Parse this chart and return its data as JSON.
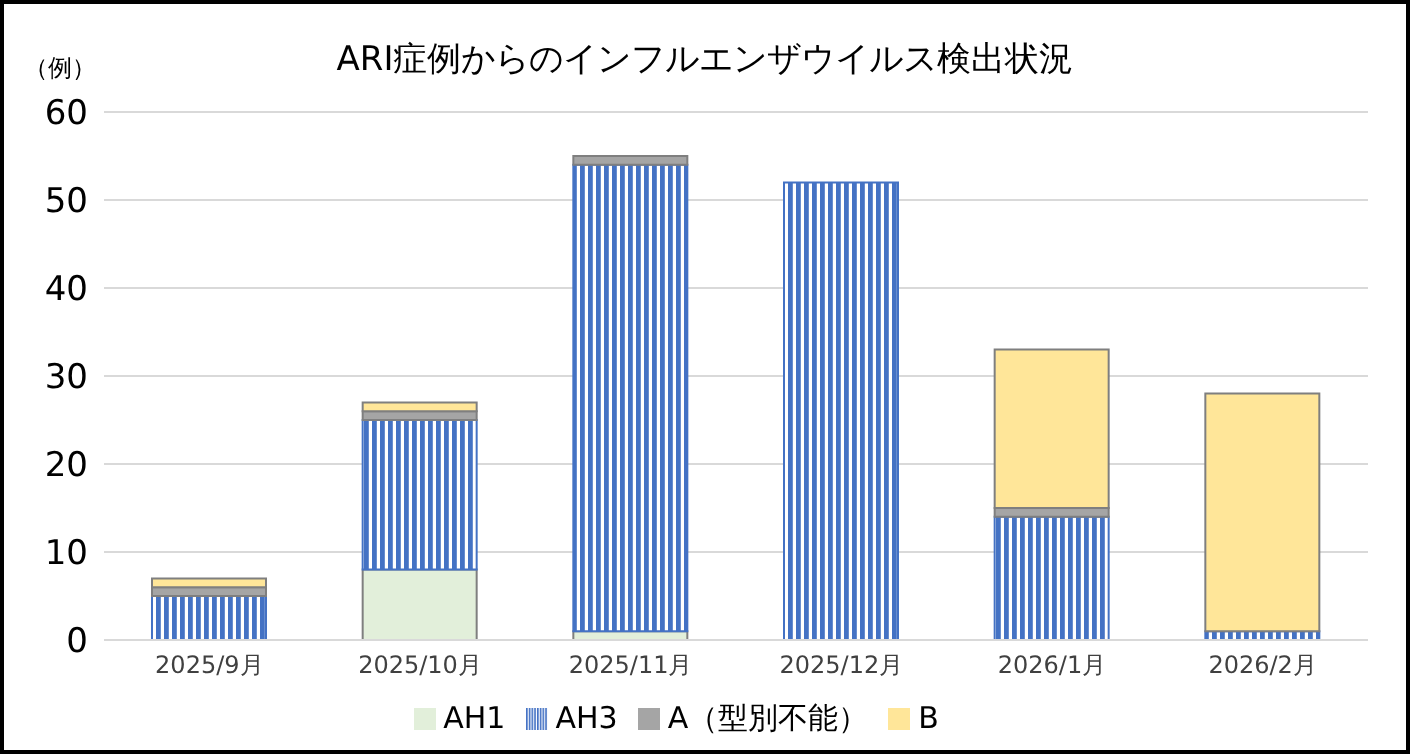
{
  "chart_data": {
    "type": "bar",
    "title": "ARI症例からのインフルエンザウイルス検出状況",
    "ylabel": "（例）",
    "categories": [
      "2025/9月",
      "2025/10月",
      "2025/11月",
      "2025/12月",
      "2026/1月",
      "2026/2月"
    ],
    "stacked": true,
    "series": [
      {
        "name": "AH1",
        "color": "#e2efda",
        "values": [
          0,
          8,
          1,
          0,
          0,
          0
        ]
      },
      {
        "name": "AH3",
        "color": "#4472c4",
        "values": [
          5,
          17,
          53,
          52,
          14,
          1
        ]
      },
      {
        "name": "A（型別不能）",
        "color": "#a5a5a5",
        "values": [
          1,
          1,
          1,
          0,
          1,
          0
        ]
      },
      {
        "name": "B",
        "color": "#ffe699",
        "values": [
          1,
          1,
          0,
          0,
          18,
          27
        ]
      }
    ],
    "ylim": [
      0,
      60
    ],
    "yticks": [
      0,
      10,
      20,
      30,
      40,
      50,
      60
    ],
    "grid": "y",
    "legend": "bottom"
  }
}
